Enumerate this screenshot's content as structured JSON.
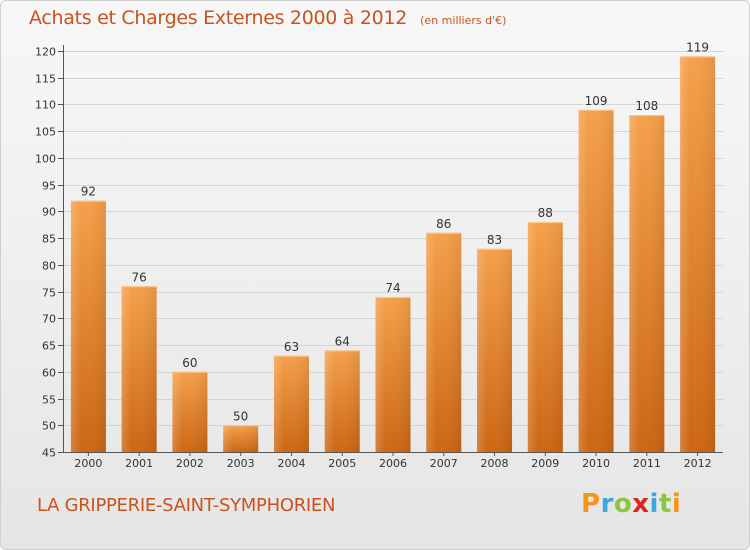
{
  "chart_data": {
    "type": "bar",
    "title": "Achats et Charges Externes 2000 à 2012",
    "subtitle": "(en milliers d'€)",
    "categories": [
      "2000",
      "2001",
      "2002",
      "2003",
      "2004",
      "2005",
      "2006",
      "2007",
      "2008",
      "2009",
      "2010",
      "2011",
      "2012"
    ],
    "values": [
      92,
      76,
      60,
      50,
      63,
      64,
      74,
      86,
      83,
      88,
      109,
      108,
      119
    ],
    "ylim": [
      45,
      120
    ],
    "yticks": [
      45,
      50,
      55,
      60,
      65,
      70,
      75,
      80,
      85,
      90,
      95,
      100,
      105,
      110,
      115,
      120
    ],
    "grid": true,
    "bar_color": "#f19a3e",
    "bar_color_dark": "#cd6a14"
  },
  "footer": {
    "commune": "LA GRIPPERIE-SAINT-SYMPHORIEN",
    "brand_letters": [
      {
        "char": "P",
        "color": "#f7941d"
      },
      {
        "char": "r",
        "color": "#39a9e0"
      },
      {
        "char": "o",
        "color": "#8cc63f"
      },
      {
        "char": "x",
        "color": "#e2231a"
      },
      {
        "char": "i",
        "color": "#39a9e0"
      },
      {
        "char": "t",
        "color": "#8cc63f"
      },
      {
        "char": "i",
        "color": "#f7941d"
      }
    ]
  }
}
